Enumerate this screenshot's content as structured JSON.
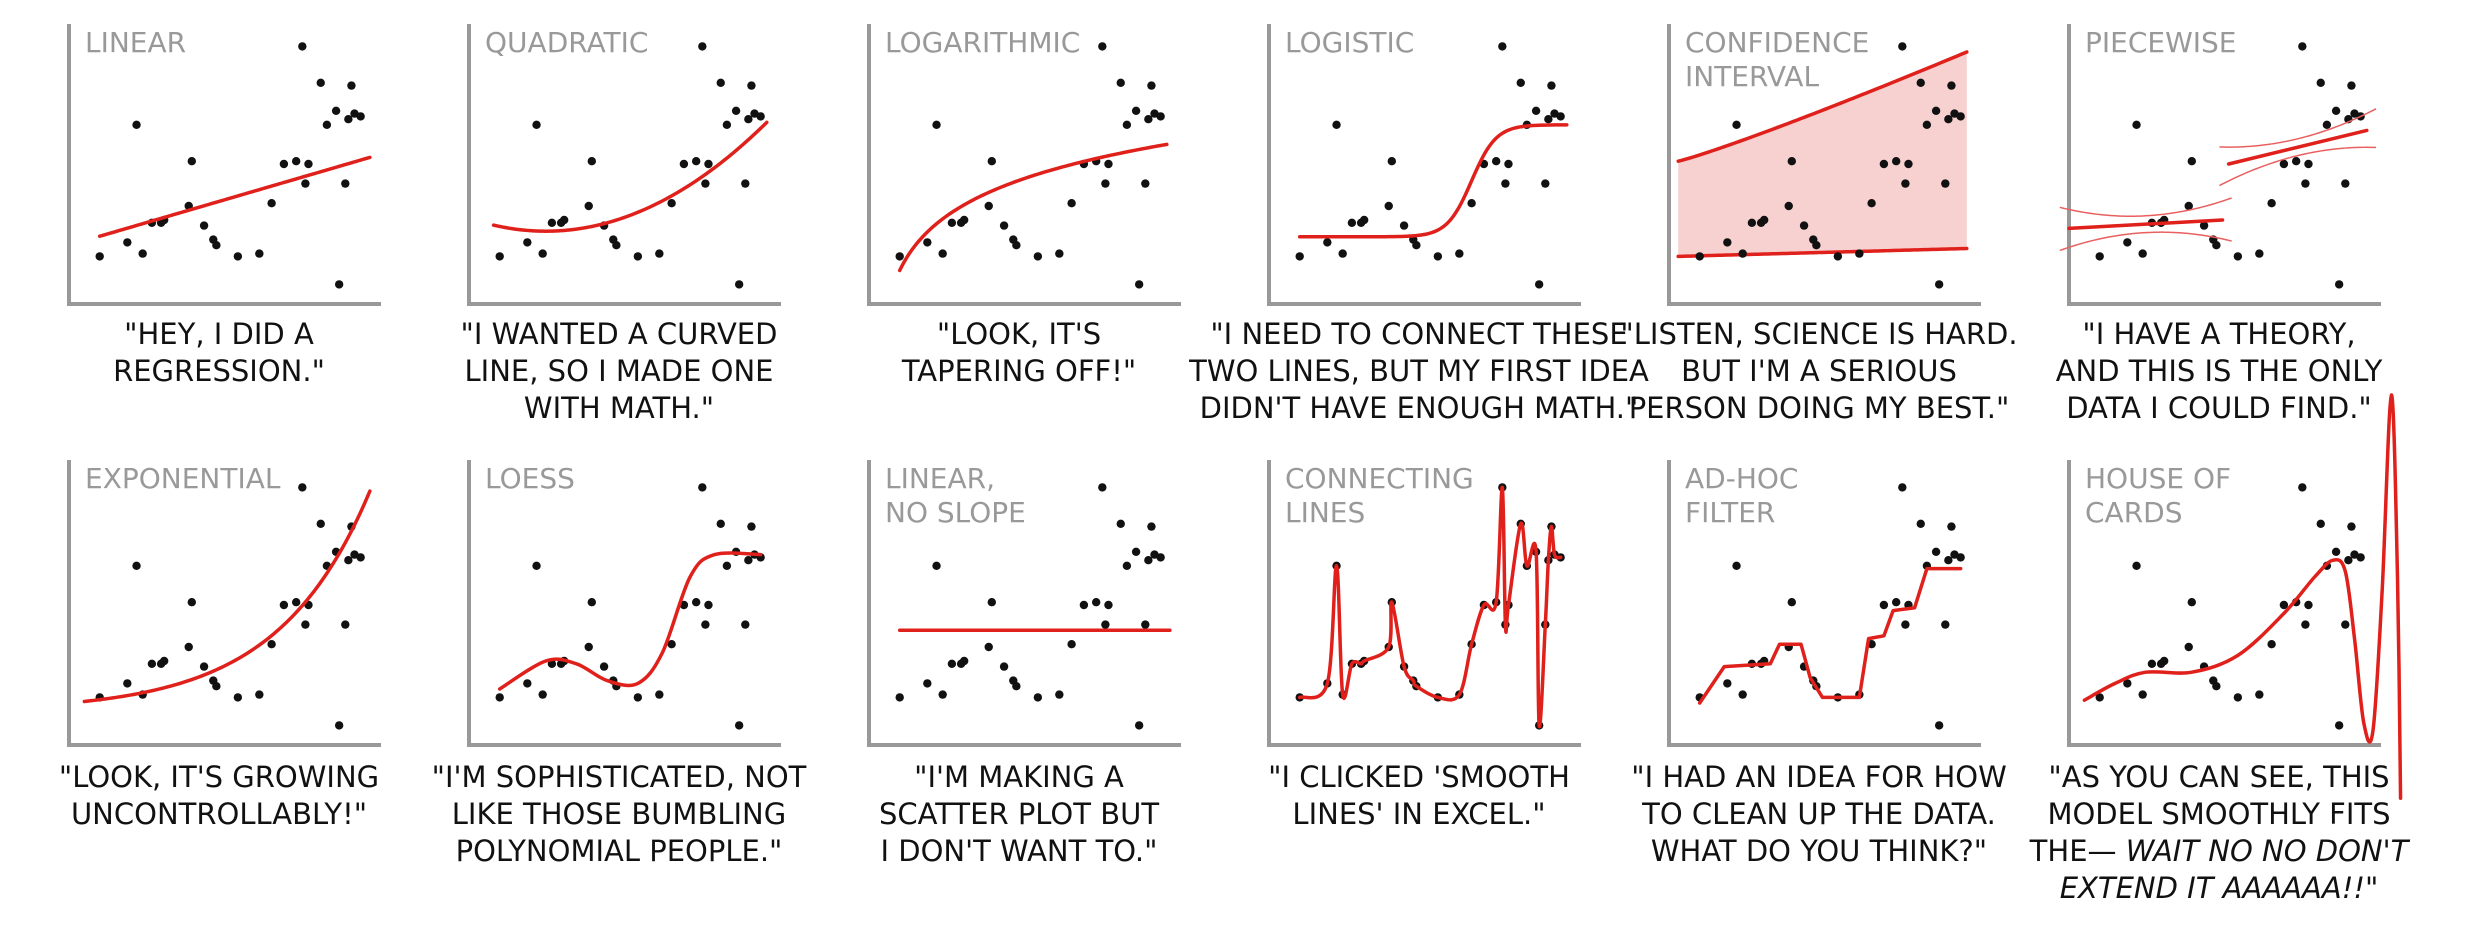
{
  "data_points": {
    "x": [
      10,
      19,
      22,
      24,
      27,
      30,
      31,
      39,
      40,
      44,
      47,
      48,
      55,
      62,
      66,
      70,
      74,
      76,
      77,
      78,
      82,
      84,
      87,
      88,
      90,
      91,
      92,
      93,
      95
    ],
    "y": [
      17,
      22,
      64,
      18,
      29,
      29,
      30,
      35,
      51,
      28,
      23,
      21,
      17,
      18,
      36,
      50,
      51,
      92,
      43,
      50,
      79,
      64,
      69,
      7,
      43,
      66,
      78,
      68,
      67
    ]
  },
  "panels": [
    {
      "fit": "linear",
      "title_lines": [
        "LINEAR"
      ],
      "caption": [
        [
          {
            "text": "\"HEY, I DID A"
          }
        ],
        [
          {
            "text": "REGRESSION.\""
          }
        ]
      ]
    },
    {
      "fit": "quadratic",
      "title_lines": [
        "QUADRATIC"
      ],
      "caption": [
        [
          {
            "text": "\"I WANTED A CURVED"
          }
        ],
        [
          {
            "text": "LINE, SO I MADE ONE"
          }
        ],
        [
          {
            "text": "WITH MATH.\""
          }
        ]
      ]
    },
    {
      "fit": "logarithmic",
      "title_lines": [
        "LOGARITHMIC"
      ],
      "caption": [
        [
          {
            "text": "\"LOOK, IT'S"
          }
        ],
        [
          {
            "text": "TAPERING OFF!\""
          }
        ]
      ]
    },
    {
      "fit": "logistic",
      "title_lines": [
        "LOGISTIC"
      ],
      "caption": [
        [
          {
            "text": "\"I NEED TO CONNECT THESE"
          }
        ],
        [
          {
            "text": "TWO LINES, BUT MY FIRST IDEA"
          }
        ],
        [
          {
            "text": "DIDN'T HAVE ENOUGH MATH.\""
          }
        ]
      ]
    },
    {
      "fit": "confidence",
      "title_lines": [
        "CONFIDENCE",
        "INTERVAL"
      ],
      "caption": [
        [
          {
            "text": "\"LISTEN, SCIENCE IS HARD."
          }
        ],
        [
          {
            "text": "BUT I'M A SERIOUS"
          }
        ],
        [
          {
            "text": "PERSON DOING MY BEST.\""
          }
        ]
      ]
    },
    {
      "fit": "piecewise",
      "title_lines": [
        "PIECEWISE"
      ],
      "caption": [
        [
          {
            "text": "\"I HAVE A THEORY,"
          }
        ],
        [
          {
            "text": "AND THIS IS THE ONLY"
          }
        ],
        [
          {
            "text": "DATA I COULD FIND.\""
          }
        ]
      ]
    },
    {
      "fit": "exponential",
      "title_lines": [
        "EXPONENTIAL"
      ],
      "caption": [
        [
          {
            "text": "\"LOOK, IT'S GROWING"
          }
        ],
        [
          {
            "text": "UNCONTROLLABLY!\""
          }
        ]
      ]
    },
    {
      "fit": "loess",
      "title_lines": [
        "LOESS"
      ],
      "caption": [
        [
          {
            "text": "\"I'M SOPHISTICATED, NOT"
          }
        ],
        [
          {
            "text": "LIKE THOSE BUMBLING"
          }
        ],
        [
          {
            "text": "POLYNOMIAL PEOPLE.\""
          }
        ]
      ]
    },
    {
      "fit": "flat",
      "title_lines": [
        "LINEAR,",
        "NO SLOPE"
      ],
      "caption": [
        [
          {
            "text": "\"I'M MAKING A"
          }
        ],
        [
          {
            "text": "SCATTER PLOT BUT"
          }
        ],
        [
          {
            "text": "I DON'T WANT TO.\""
          }
        ]
      ]
    },
    {
      "fit": "connecting",
      "title_lines": [
        "CONNECTING",
        "LINES"
      ],
      "caption": [
        [
          {
            "text": "\"I CLICKED 'SMOOTH"
          }
        ],
        [
          {
            "text": "LINES' IN EXCEL.\""
          }
        ]
      ]
    },
    {
      "fit": "adhoc",
      "title_lines": [
        "AD-HOC",
        "FILTER"
      ],
      "caption": [
        [
          {
            "text": "\"I HAD AN IDEA FOR HOW"
          }
        ],
        [
          {
            "text": "TO CLEAN UP THE DATA."
          }
        ],
        [
          {
            "text": "WHAT DO YOU THINK?\""
          }
        ]
      ]
    },
    {
      "fit": "house",
      "title_lines": [
        "HOUSE OF",
        "CARDS"
      ],
      "caption": [
        [
          {
            "text": "\"AS YOU CAN SEE, THIS"
          }
        ],
        [
          {
            "text": "MODEL SMOOTHLY FITS"
          }
        ],
        [
          {
            "text": "THE— "
          },
          {
            "text": "WAIT NO NO DON'T",
            "style": "italic"
          }
        ],
        [
          {
            "text": "EXTEND IT AAAAAA!!\"",
            "style": "italic"
          }
        ]
      ]
    }
  ]
}
